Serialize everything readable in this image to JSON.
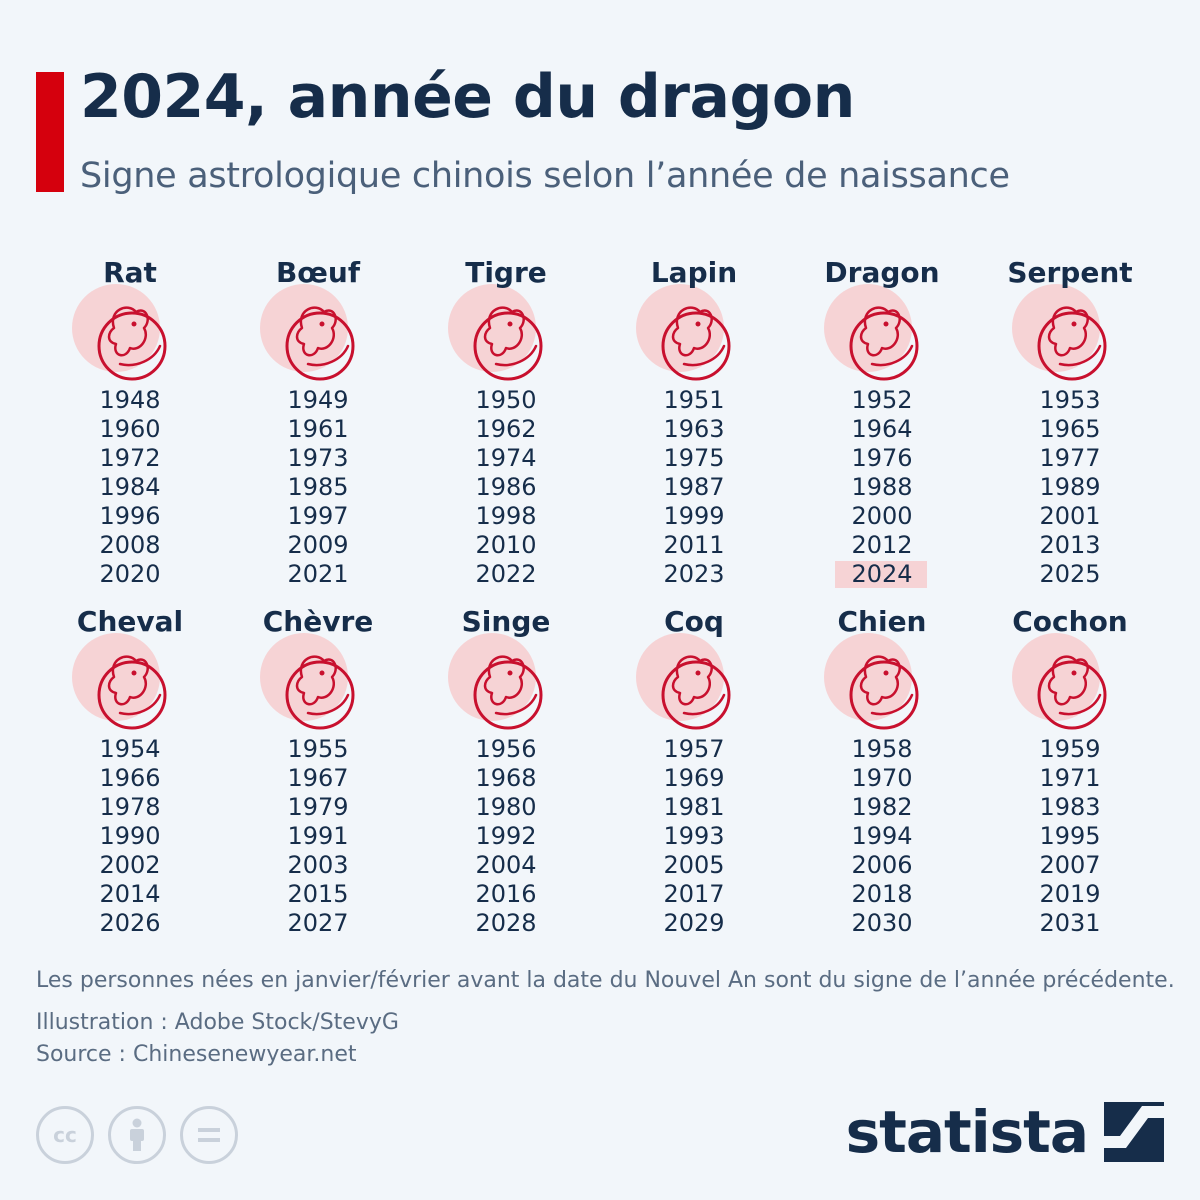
{
  "header": {
    "title": "2024, année du dragon",
    "subtitle": "Signe astrologique chinois selon l’année de naissance"
  },
  "chart_data": {
    "type": "table",
    "title": "2024, année du dragon",
    "subtitle": "Signe astrologique chinois selon l’année de naissance",
    "highlight": {
      "sign": "Dragon",
      "year": "2024",
      "color": "#f6d3d5"
    },
    "signs": [
      {
        "name": "Rat",
        "icon": "rat-icon",
        "years": [
          "1948",
          "1960",
          "1972",
          "1984",
          "1996",
          "2008",
          "2020"
        ]
      },
      {
        "name": "Bœuf",
        "icon": "ox-icon",
        "years": [
          "1949",
          "1961",
          "1973",
          "1985",
          "1997",
          "2009",
          "2021"
        ]
      },
      {
        "name": "Tigre",
        "icon": "tiger-icon",
        "years": [
          "1950",
          "1962",
          "1974",
          "1986",
          "1998",
          "2010",
          "2022"
        ]
      },
      {
        "name": "Lapin",
        "icon": "rabbit-icon",
        "years": [
          "1951",
          "1963",
          "1975",
          "1987",
          "1999",
          "2011",
          "2023"
        ]
      },
      {
        "name": "Dragon",
        "icon": "dragon-icon",
        "years": [
          "1952",
          "1964",
          "1976",
          "1988",
          "2000",
          "2012",
          "2024"
        ]
      },
      {
        "name": "Serpent",
        "icon": "snake-icon",
        "years": [
          "1953",
          "1965",
          "1977",
          "1989",
          "2001",
          "2013",
          "2025"
        ]
      },
      {
        "name": "Cheval",
        "icon": "horse-icon",
        "years": [
          "1954",
          "1966",
          "1978",
          "1990",
          "2002",
          "2014",
          "2026"
        ]
      },
      {
        "name": "Chèvre",
        "icon": "goat-icon",
        "years": [
          "1955",
          "1967",
          "1979",
          "1991",
          "2003",
          "2015",
          "2027"
        ]
      },
      {
        "name": "Singe",
        "icon": "monkey-icon",
        "years": [
          "1956",
          "1968",
          "1980",
          "1992",
          "2004",
          "2016",
          "2028"
        ]
      },
      {
        "name": "Coq",
        "icon": "rooster-icon",
        "years": [
          "1957",
          "1969",
          "1981",
          "1993",
          "2005",
          "2017",
          "2029"
        ]
      },
      {
        "name": "Chien",
        "icon": "dog-icon",
        "years": [
          "1958",
          "1970",
          "1982",
          "1994",
          "2006",
          "2018",
          "2030"
        ]
      },
      {
        "name": "Cochon",
        "icon": "pig-icon",
        "years": [
          "1959",
          "1971",
          "1983",
          "1995",
          "2007",
          "2019",
          "2031"
        ]
      }
    ]
  },
  "footer": {
    "note": "Les personnes nées en janvier/février avant la date du Nouvel An sont du signe de l’année précédente.",
    "illustration": "Illustration : Adobe Stock/StevyG",
    "source": "Source : Chinesenewyear.net",
    "brand": "statista"
  },
  "colors": {
    "accent": "#d5000d",
    "icon_stroke": "#c8102e",
    "icon_circle": "#f6d3d5",
    "text": "#162d4a",
    "muted": "#5a6c82"
  },
  "license_icons": [
    "cc-icon",
    "attribution-icon",
    "no-derivatives-icon"
  ]
}
